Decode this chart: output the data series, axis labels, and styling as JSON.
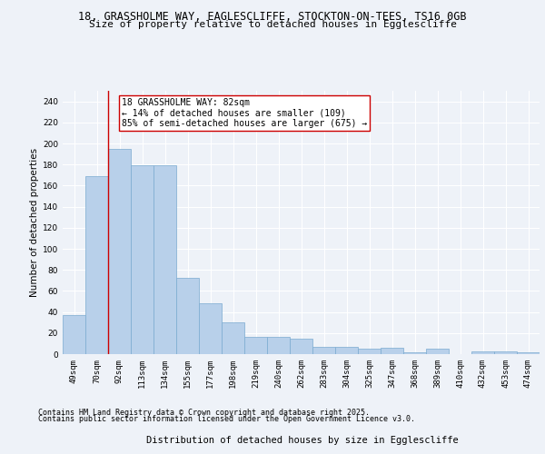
{
  "title_line1": "18, GRASSHOLME WAY, EAGLESCLIFFE, STOCKTON-ON-TEES, TS16 0GB",
  "title_line2": "Size of property relative to detached houses in Egglescliffe",
  "xlabel": "Distribution of detached houses by size in Egglescliffe",
  "ylabel": "Number of detached properties",
  "categories": [
    "49sqm",
    "70sqm",
    "92sqm",
    "113sqm",
    "134sqm",
    "155sqm",
    "177sqm",
    "198sqm",
    "219sqm",
    "240sqm",
    "262sqm",
    "283sqm",
    "304sqm",
    "325sqm",
    "347sqm",
    "368sqm",
    "389sqm",
    "410sqm",
    "432sqm",
    "453sqm",
    "474sqm"
  ],
  "values": [
    37,
    169,
    195,
    179,
    179,
    72,
    48,
    30,
    16,
    16,
    15,
    7,
    7,
    5,
    6,
    2,
    5,
    0,
    3,
    3,
    2
  ],
  "bar_color": "#b8d0ea",
  "bar_edge_color": "#7aaad0",
  "bar_edge_width": 0.5,
  "vline_x": 1.5,
  "vline_color": "#cc0000",
  "annotation_text": "18 GRASSHOLME WAY: 82sqm\n← 14% of detached houses are smaller (109)\n85% of semi-detached houses are larger (675) →",
  "annotation_box_color": "#ffffff",
  "annotation_box_edge_color": "#cc0000",
  "ylim": [
    0,
    250
  ],
  "yticks": [
    0,
    20,
    40,
    60,
    80,
    100,
    120,
    140,
    160,
    180,
    200,
    220,
    240
  ],
  "background_color": "#eef2f8",
  "axes_background": "#eef2f8",
  "footer_line1": "Contains HM Land Registry data © Crown copyright and database right 2025.",
  "footer_line2": "Contains public sector information licensed under the Open Government Licence v3.0.",
  "title_fontsize": 8.5,
  "subtitle_fontsize": 8,
  "axis_label_fontsize": 7.5,
  "tick_fontsize": 6.5,
  "footer_fontsize": 6,
  "annotation_fontsize": 7
}
